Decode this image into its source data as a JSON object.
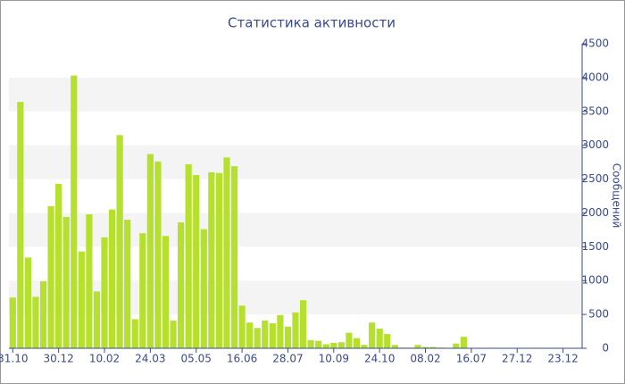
{
  "chart_data": {
    "type": "bar",
    "title": "Статистика активности",
    "y_label": "Сообщений",
    "color": "#b5e02d",
    "categories": [
      "31.10",
      null,
      null,
      null,
      null,
      null,
      "30.12",
      null,
      null,
      null,
      null,
      null,
      "10.02",
      null,
      null,
      null,
      null,
      null,
      "24.03",
      null,
      null,
      null,
      null,
      null,
      "05.05",
      null,
      null,
      null,
      null,
      null,
      "16.06",
      null,
      null,
      null,
      null,
      null,
      "28.07",
      null,
      null,
      null,
      null,
      null,
      "10.09",
      null,
      null,
      null,
      null,
      null,
      "24.10",
      null,
      null,
      null,
      null,
      null,
      "08.02",
      null,
      null,
      null,
      null,
      null,
      "16.07",
      null,
      null,
      null,
      null,
      null,
      "27.12",
      null,
      null,
      null,
      null,
      null,
      "23.12",
      null,
      null
    ],
    "values": [
      750,
      3640,
      1340,
      760,
      990,
      2100,
      2430,
      1940,
      4030,
      1430,
      1980,
      840,
      1640,
      2050,
      3150,
      1900,
      430,
      1700,
      2870,
      2760,
      1660,
      410,
      1860,
      2720,
      2560,
      1760,
      2600,
      2590,
      2820,
      2690,
      630,
      380,
      300,
      410,
      370,
      490,
      320,
      530,
      710,
      120,
      110,
      60,
      80,
      90,
      230,
      150,
      50,
      380,
      290,
      210,
      50,
      10,
      10,
      50,
      20,
      20,
      10,
      5,
      70,
      170,
      5,
      5,
      5,
      5,
      5,
      5,
      5,
      5,
      5,
      5,
      5,
      5,
      5,
      5,
      5
    ],
    "ylim": [
      0,
      4500
    ],
    "yticks": [
      0,
      500,
      1000,
      1500,
      2000,
      2500,
      3000,
      3500,
      4000,
      4500
    ],
    "grid": "bands"
  }
}
